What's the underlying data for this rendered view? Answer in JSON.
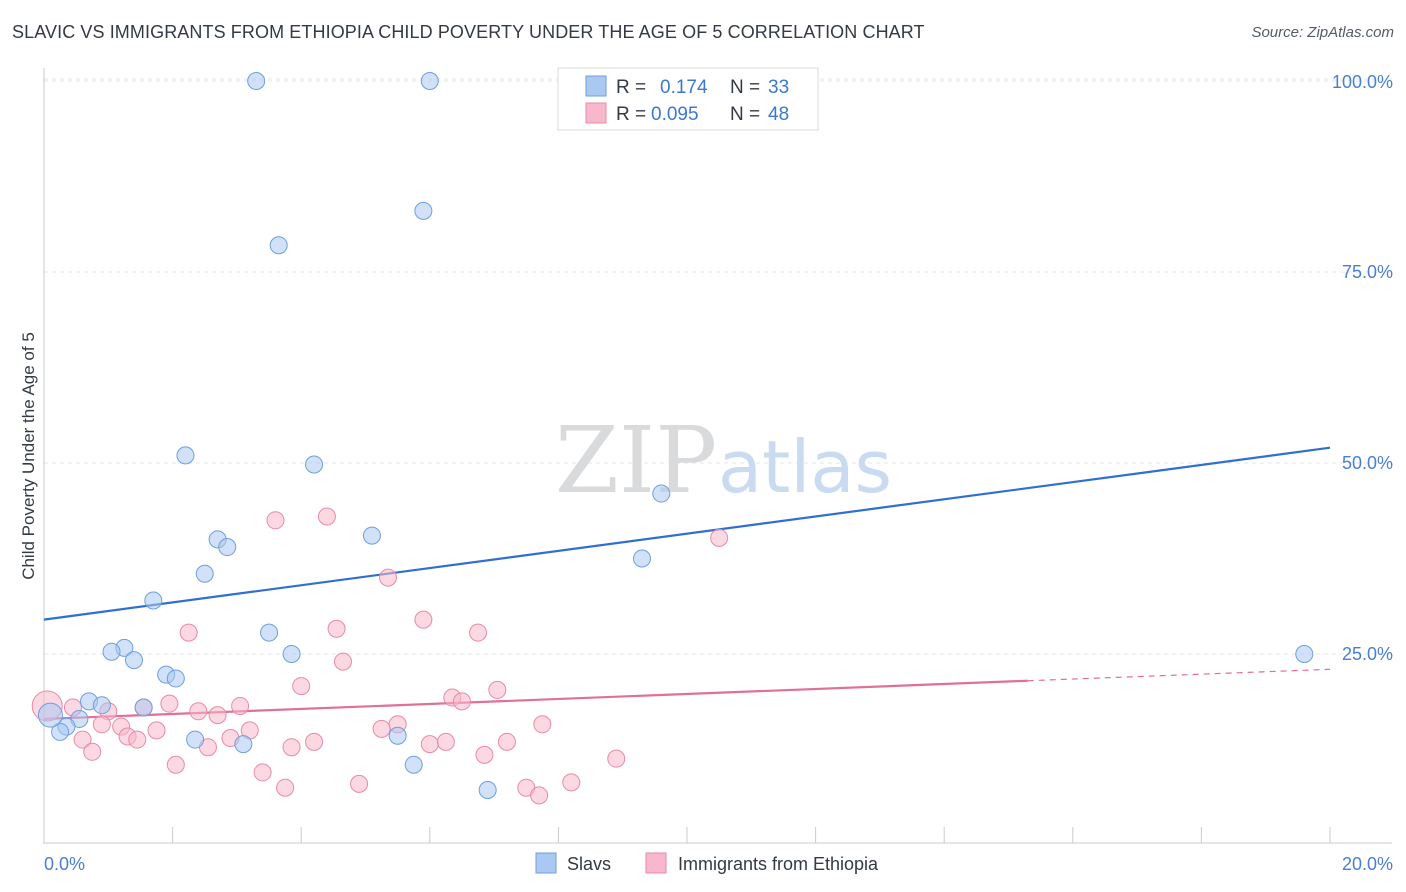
{
  "header": {
    "title": "SLAVIC VS IMMIGRANTS FROM ETHIOPIA CHILD POVERTY UNDER THE AGE OF 5 CORRELATION CHART",
    "source": "Source: ZipAtlas.com"
  },
  "watermark": {
    "zip": "ZIP",
    "atlas": "atlas"
  },
  "legend": {
    "rows": [
      {
        "r_label": "R =",
        "r_value": "0.174",
        "n_label": "N =",
        "n_value": "33",
        "color": "#a9c9f2"
      },
      {
        "r_label": "R =",
        "r_value": "0.095",
        "n_label": "N =",
        "n_value": "48",
        "color": "#f7b8cb"
      }
    ]
  },
  "bottom_legend": {
    "slavs": "Slavs",
    "ethiopia": "Immigrants from Ethiopia"
  },
  "chart_data": {
    "type": "scatter",
    "title": "SLAVIC VS IMMIGRANTS FROM ETHIOPIA CHILD POVERTY UNDER THE AGE OF 5 CORRELATION CHART",
    "xlabel": "",
    "ylabel": "Child Poverty Under the Age of 5",
    "xlim": [
      0,
      20
    ],
    "ylim": [
      0,
      102
    ],
    "x_tick_labels": [
      "0.0%",
      "20.0%"
    ],
    "y_ticks": [
      25,
      50,
      75,
      100
    ],
    "y_tick_labels": [
      "25.0%",
      "50.0%",
      "75.0%",
      "100.0%"
    ],
    "grid": true,
    "legend_position": "top-center",
    "colors": {
      "slavs_fill": "#a9c9f2",
      "slavs_stroke": "#6f9fdc",
      "slavs_line": "#2f6fd0",
      "ethiopia_fill": "#f7b8cb",
      "ethiopia_stroke": "#e98aa8",
      "ethiopia_line": "#e0709a"
    },
    "series": [
      {
        "name": "Slavs",
        "points": [
          [
            3.3,
            100
          ],
          [
            6.0,
            100
          ],
          [
            3.65,
            78.5
          ],
          [
            5.9,
            83
          ],
          [
            2.2,
            51
          ],
          [
            4.2,
            49.8
          ],
          [
            9.6,
            46
          ],
          [
            5.1,
            40.5
          ],
          [
            2.7,
            40
          ],
          [
            2.85,
            39
          ],
          [
            2.5,
            35.5
          ],
          [
            9.3,
            37.5
          ],
          [
            1.7,
            32
          ],
          [
            3.5,
            27.8
          ],
          [
            1.25,
            25.8
          ],
          [
            1.05,
            25.3
          ],
          [
            3.85,
            25
          ],
          [
            1.4,
            24.2
          ],
          [
            1.9,
            22.3
          ],
          [
            2.05,
            21.8
          ],
          [
            19.6,
            25
          ],
          [
            0.7,
            18.8
          ],
          [
            0.9,
            18.3
          ],
          [
            1.55,
            18
          ],
          [
            0.55,
            16.5
          ],
          [
            0.35,
            15.5
          ],
          [
            0.25,
            14.8
          ],
          [
            2.35,
            13.8
          ],
          [
            3.1,
            13.2
          ],
          [
            5.5,
            14.3
          ],
          [
            5.75,
            10.5
          ],
          [
            6.9,
            7.2
          ],
          [
            0.1,
            17
          ]
        ],
        "trend": {
          "x": [
            0,
            20
          ],
          "y": [
            29.5,
            52.0
          ]
        }
      },
      {
        "name": "Immigrants from Ethiopia",
        "points": [
          [
            0.05,
            18.2
          ],
          [
            0.45,
            18
          ],
          [
            0.6,
            13.8
          ],
          [
            0.75,
            12.2
          ],
          [
            1.0,
            17.5
          ],
          [
            0.9,
            15.8
          ],
          [
            1.2,
            15.5
          ],
          [
            1.3,
            14.2
          ],
          [
            1.45,
            13.8
          ],
          [
            1.75,
            15
          ],
          [
            1.55,
            18
          ],
          [
            1.95,
            18.5
          ],
          [
            2.05,
            10.5
          ],
          [
            2.25,
            27.8
          ],
          [
            2.4,
            17.5
          ],
          [
            2.55,
            12.8
          ],
          [
            2.7,
            17
          ],
          [
            2.9,
            14
          ],
          [
            3.05,
            18.2
          ],
          [
            3.2,
            15
          ],
          [
            3.4,
            9.5
          ],
          [
            3.6,
            42.5
          ],
          [
            3.75,
            7.5
          ],
          [
            3.85,
            12.8
          ],
          [
            4.0,
            20.8
          ],
          [
            4.2,
            13.5
          ],
          [
            4.4,
            43
          ],
          [
            4.55,
            28.3
          ],
          [
            4.65,
            24
          ],
          [
            4.9,
            8
          ],
          [
            5.25,
            15.2
          ],
          [
            5.35,
            35
          ],
          [
            5.5,
            15.8
          ],
          [
            5.9,
            29.5
          ],
          [
            6.0,
            13.2
          ],
          [
            6.25,
            13.5
          ],
          [
            6.35,
            19.3
          ],
          [
            6.5,
            18.8
          ],
          [
            6.75,
            27.8
          ],
          [
            6.85,
            11.8
          ],
          [
            7.2,
            13.5
          ],
          [
            7.05,
            20.3
          ],
          [
            7.5,
            7.5
          ],
          [
            7.7,
            6.5
          ],
          [
            7.75,
            15.8
          ],
          [
            8.2,
            8.2
          ],
          [
            8.9,
            11.3
          ],
          [
            10.5,
            40.2
          ]
        ],
        "trend": {
          "x": [
            0,
            15.3
          ],
          "y": [
            16.5,
            21.5
          ]
        },
        "trend_dashed": {
          "x": [
            15.3,
            20
          ],
          "y": [
            21.5,
            23.0
          ]
        }
      }
    ]
  }
}
